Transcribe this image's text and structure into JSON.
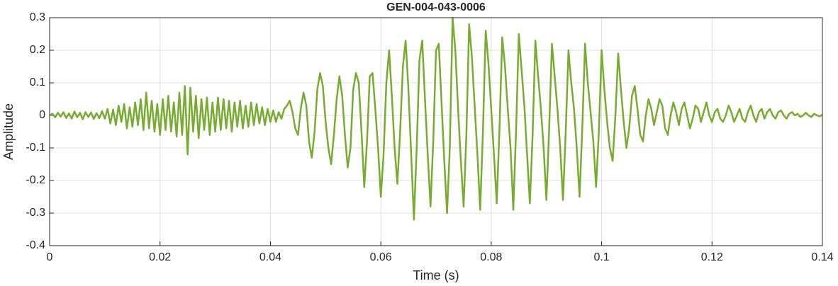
{
  "chart_data": {
    "type": "line",
    "title": "GEN-004-043-0006",
    "x_label": "Time (s)",
    "y_label": "Amplitude",
    "color": "#77ac30",
    "grid": true,
    "xlim": [
      0,
      0.14
    ],
    "xticks": [
      0,
      0.02,
      0.04,
      0.06,
      0.08,
      0.1,
      0.12,
      0.14
    ],
    "ylim": [
      -0.4,
      0.3
    ],
    "yticks": [
      -0.4,
      -0.3,
      -0.2,
      -0.1,
      0,
      0.1,
      0.2,
      0.3
    ],
    "x": [
      0,
      0.0005,
      0.001,
      0.0015,
      0.002,
      0.0025,
      0.003,
      0.0035,
      0.004,
      0.0045,
      0.005,
      0.0055,
      0.006,
      0.0065,
      0.007,
      0.0075,
      0.008,
      0.0085,
      0.009,
      0.0095,
      0.01,
      0.0105,
      0.011,
      0.0115,
      0.012,
      0.0125,
      0.013,
      0.0135,
      0.014,
      0.0145,
      0.015,
      0.0155,
      0.016,
      0.0165,
      0.017,
      0.0175,
      0.018,
      0.0185,
      0.019,
      0.0195,
      0.02,
      0.0205,
      0.021,
      0.0215,
      0.022,
      0.0225,
      0.023,
      0.0235,
      0.024,
      0.0245,
      0.025,
      0.0255,
      0.026,
      0.0265,
      0.027,
      0.0275,
      0.028,
      0.0285,
      0.029,
      0.0295,
      0.03,
      0.0305,
      0.031,
      0.0315,
      0.032,
      0.0325,
      0.033,
      0.0335,
      0.034,
      0.0345,
      0.035,
      0.0355,
      0.036,
      0.0365,
      0.037,
      0.0375,
      0.038,
      0.0385,
      0.039,
      0.0395,
      0.04,
      0.0405,
      0.041,
      0.0415,
      0.042,
      0.0425,
      0.043,
      0.0435,
      0.044,
      0.0445,
      0.045,
      0.0455,
      0.046,
      0.0465,
      0.047,
      0.0475,
      0.048,
      0.0485,
      0.049,
      0.0495,
      0.05,
      0.0505,
      0.051,
      0.0515,
      0.052,
      0.0525,
      0.053,
      0.0535,
      0.054,
      0.0545,
      0.055,
      0.0555,
      0.056,
      0.0565,
      0.057,
      0.0575,
      0.058,
      0.0585,
      0.059,
      0.0595,
      0.06,
      0.0605,
      0.061,
      0.0615,
      0.062,
      0.0625,
      0.063,
      0.0635,
      0.064,
      0.0645,
      0.065,
      0.0655,
      0.066,
      0.0665,
      0.067,
      0.0675,
      0.068,
      0.0685,
      0.069,
      0.0695,
      0.07,
      0.0705,
      0.071,
      0.0715,
      0.072,
      0.0725,
      0.073,
      0.0735,
      0.074,
      0.0745,
      0.075,
      0.0755,
      0.076,
      0.0765,
      0.077,
      0.0775,
      0.078,
      0.0785,
      0.079,
      0.0795,
      0.08,
      0.0805,
      0.081,
      0.0815,
      0.082,
      0.0825,
      0.083,
      0.0835,
      0.084,
      0.0845,
      0.085,
      0.0855,
      0.086,
      0.0865,
      0.087,
      0.0875,
      0.088,
      0.0885,
      0.089,
      0.0895,
      0.09,
      0.0905,
      0.091,
      0.0915,
      0.092,
      0.0925,
      0.093,
      0.0935,
      0.094,
      0.0945,
      0.095,
      0.0955,
      0.096,
      0.0965,
      0.097,
      0.0975,
      0.098,
      0.0985,
      0.099,
      0.0995,
      0.1,
      0.1005,
      0.101,
      0.1015,
      0.102,
      0.1025,
      0.103,
      0.1035,
      0.104,
      0.1045,
      0.105,
      0.1055,
      0.106,
      0.1065,
      0.107,
      0.1075,
      0.108,
      0.1085,
      0.109,
      0.1095,
      0.11,
      0.1105,
      0.111,
      0.1115,
      0.112,
      0.1125,
      0.113,
      0.1135,
      0.114,
      0.1145,
      0.115,
      0.1155,
      0.116,
      0.1165,
      0.117,
      0.1175,
      0.118,
      0.1185,
      0.119,
      0.1195,
      0.12,
      0.1205,
      0.121,
      0.1215,
      0.122,
      0.1225,
      0.123,
      0.1235,
      0.124,
      0.1245,
      0.125,
      0.1255,
      0.126,
      0.1265,
      0.127,
      0.1275,
      0.128,
      0.1285,
      0.129,
      0.1295,
      0.13,
      0.1305,
      0.131,
      0.1315,
      0.132,
      0.1325,
      0.133,
      0.1335,
      0.134,
      0.1345,
      0.135,
      0.1355,
      0.136,
      0.1365,
      0.137,
      0.1375,
      0.138,
      0.1385,
      0.139,
      0.1395,
      0.14
    ],
    "values": [
      0,
      0.005,
      -0.006,
      0.008,
      -0.004,
      0.01,
      -0.008,
      0.006,
      -0.01,
      0.012,
      -0.006,
      0.008,
      -0.012,
      0.01,
      -0.005,
      0.009,
      -0.011,
      0.007,
      -0.009,
      0.013,
      -0.01,
      0.02,
      -0.025,
      0.018,
      -0.03,
      0.03,
      -0.02,
      0.035,
      -0.04,
      0.025,
      -0.035,
      0.04,
      -0.03,
      0.05,
      -0.045,
      0.07,
      -0.04,
      0.045,
      -0.05,
      0.035,
      -0.06,
      0.05,
      -0.045,
      0.06,
      -0.05,
      0.04,
      -0.065,
      0.07,
      -0.06,
      0.09,
      -0.12,
      0.085,
      -0.05,
      0.06,
      -0.07,
      0.05,
      -0.045,
      0.055,
      -0.06,
      0.04,
      -0.05,
      0.055,
      -0.045,
      0.05,
      -0.04,
      0.045,
      -0.05,
      0.04,
      -0.035,
      0.045,
      -0.04,
      0.03,
      -0.035,
      0.04,
      -0.03,
      0.035,
      -0.025,
      0.025,
      -0.03,
      0.02,
      -0.02,
      0.015,
      -0.02,
      0.01,
      -0.01,
      0.02,
      0.03,
      0.045,
      0.01,
      -0.04,
      -0.06,
      0.02,
      0.07,
      0.03,
      -0.08,
      -0.13,
      -0.05,
      0.08,
      0.13,
      0.09,
      -0.02,
      -0.1,
      -0.15,
      -0.06,
      0.05,
      0.12,
      0.06,
      -0.06,
      -0.16,
      -0.1,
      0.08,
      0.13,
      0.1,
      -0.05,
      -0.22,
      -0.08,
      0.12,
      0.13,
      0.02,
      -0.1,
      -0.25,
      -0.12,
      0.1,
      0.2,
      0.06,
      -0.1,
      -0.21,
      -0.05,
      0.15,
      0.23,
      0.08,
      -0.12,
      -0.32,
      -0.1,
      0.17,
      0.23,
      0.05,
      -0.12,
      -0.28,
      -0.08,
      0.2,
      0.22,
      0.04,
      -0.14,
      -0.3,
      -0.1,
      0.3,
      0.2,
      0.02,
      -0.14,
      -0.28,
      -0.06,
      0.28,
      0.18,
      0.03,
      -0.12,
      -0.29,
      -0.05,
      0.26,
      0.16,
      0.02,
      -0.12,
      -0.27,
      -0.04,
      0.24,
      0.15,
      0.02,
      -0.1,
      -0.29,
      -0.05,
      0.25,
      0.14,
      0.03,
      -0.12,
      -0.27,
      -0.06,
      0.23,
      0.12,
      0.02,
      -0.1,
      -0.26,
      -0.04,
      0.22,
      0.12,
      0.02,
      -0.1,
      -0.26,
      -0.05,
      0.2,
      0.1,
      0.02,
      -0.1,
      -0.25,
      -0.04,
      0.22,
      0.1,
      0.01,
      -0.08,
      -0.22,
      -0.05,
      0.2,
      0.08,
      -0.02,
      -0.1,
      -0.14,
      0,
      0.19,
      0.08,
      -0.02,
      -0.1,
      -0.04,
      0.06,
      0.09,
      0.02,
      -0.06,
      -0.08,
      0,
      0.05,
      0.02,
      -0.03,
      0.01,
      0.05,
      0.03,
      -0.04,
      -0.06,
      0,
      0.04,
      0.01,
      -0.03,
      0.02,
      0.04,
      0,
      -0.04,
      -0.01,
      0.03,
      0.02,
      -0.02,
      0.01,
      0.04,
      0,
      -0.02,
      0.01,
      0.02,
      -0.01,
      -0.02,
      0,
      0.03,
      0.01,
      -0.02,
      0,
      0.02,
      -0.01,
      -0.02,
      0.01,
      0.03,
      0,
      -0.02,
      0.01,
      0.02,
      -0.01,
      0.01,
      0.02,
      0,
      -0.01,
      0.01,
      0.015,
      0,
      -0.01,
      0.005,
      0.01,
      0,
      0.005,
      -0.005,
      0,
      0.008,
      0,
      -0.005,
      0.005,
      0,
      -0.003,
      0.002
    ]
  }
}
